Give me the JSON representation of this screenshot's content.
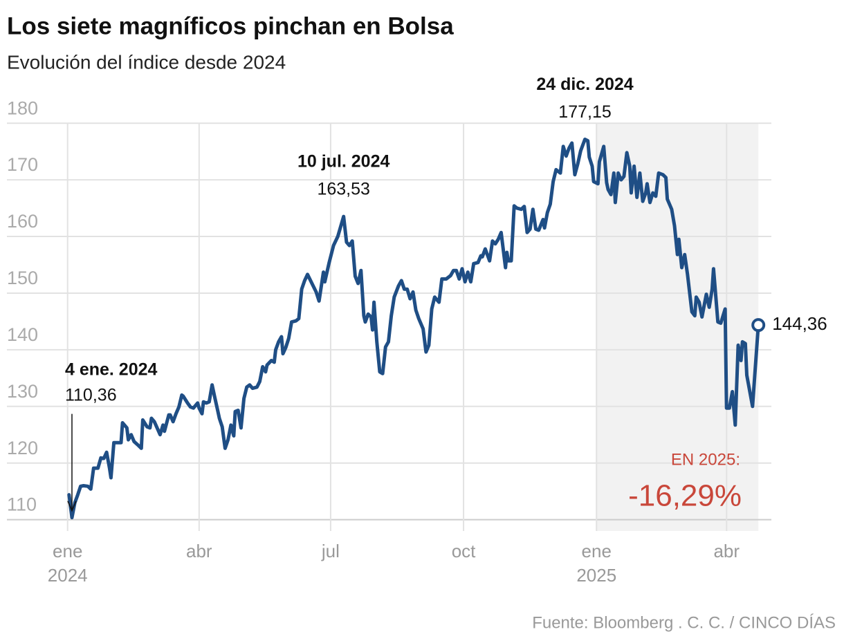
{
  "chart_data": {
    "type": "line",
    "title": "Los siete magníficos pinchan en Bolsa",
    "subtitle": "Evolución del índice desde 2024",
    "source": "Fuente: Bloomberg . C. C. / CINCO DÍAS",
    "xlim": [
      "2023-11-20",
      "2025-05-02"
    ],
    "xticks": [
      {
        "value": "2024-01-01",
        "label": "ene",
        "year": "2024"
      },
      {
        "value": "2024-04-01",
        "label": "abr"
      },
      {
        "value": "2024-07-01",
        "label": "jul"
      },
      {
        "value": "2024-10-01",
        "label": "oct"
      },
      {
        "value": "2025-01-01",
        "label": "ene",
        "year": "2025"
      },
      {
        "value": "2025-04-01",
        "label": "abr"
      }
    ],
    "ylim": [
      108,
      181
    ],
    "yticks": [
      110,
      120,
      130,
      140,
      150,
      160,
      170,
      180
    ],
    "grid": true,
    "highlight_from": "2025-01-01",
    "highlight_color": "#f2f2f2",
    "x": [
      "2024-01-02",
      "2024-01-04",
      "2024-01-06",
      "2024-01-08",
      "2024-01-10",
      "2024-01-12",
      "2024-01-15",
      "2024-01-17",
      "2024-01-19",
      "2024-01-22",
      "2024-01-24",
      "2024-01-26",
      "2024-01-28",
      "2024-01-30",
      "2024-01-31",
      "2024-02-02",
      "2024-02-05",
      "2024-02-07",
      "2024-02-08",
      "2024-02-11",
      "2024-02-12",
      "2024-02-14",
      "2024-02-16",
      "2024-02-19",
      "2024-02-21",
      "2024-02-22",
      "2024-02-25",
      "2024-02-27",
      "2024-02-28",
      "2024-03-01",
      "2024-03-04",
      "2024-03-05",
      "2024-03-07",
      "2024-03-08",
      "2024-03-11",
      "2024-03-12",
      "2024-03-14",
      "2024-03-16",
      "2024-03-18",
      "2024-03-20",
      "2024-03-21",
      "2024-03-24",
      "2024-03-26",
      "2024-03-28",
      "2024-03-31",
      "2024-04-01",
      "2024-04-03",
      "2024-04-04",
      "2024-04-06",
      "2024-04-08",
      "2024-04-10",
      "2024-04-12",
      "2024-04-14",
      "2024-04-15",
      "2024-04-17",
      "2024-04-19",
      "2024-04-21",
      "2024-04-23",
      "2024-04-25",
      "2024-04-26",
      "2024-04-28",
      "2024-04-30",
      "2024-05-02",
      "2024-05-04",
      "2024-05-06",
      "2024-05-08",
      "2024-05-11",
      "2024-05-13",
      "2024-05-15",
      "2024-05-17",
      "2024-05-18",
      "2024-05-21",
      "2024-05-23",
      "2024-05-24",
      "2024-05-26",
      "2024-05-28",
      "2024-05-29",
      "2024-05-31",
      "2024-06-02",
      "2024-06-04",
      "2024-06-07",
      "2024-06-09",
      "2024-06-11",
      "2024-06-13",
      "2024-06-15",
      "2024-06-21",
      "2024-06-23",
      "2024-06-26",
      "2024-06-27",
      "2024-06-30",
      "2024-07-03",
      "2024-07-06",
      "2024-07-10",
      "2024-07-12",
      "2024-07-14",
      "2024-07-16",
      "2024-07-18",
      "2024-07-20",
      "2024-07-22",
      "2024-07-24",
      "2024-07-25",
      "2024-07-27",
      "2024-07-29",
      "2024-07-30",
      "2024-07-31",
      "2024-08-02",
      "2024-08-04",
      "2024-08-06",
      "2024-08-08",
      "2024-08-10",
      "2024-08-12",
      "2024-08-14",
      "2024-08-17",
      "2024-08-19",
      "2024-08-21",
      "2024-08-23",
      "2024-08-25",
      "2024-08-27",
      "2024-08-29",
      "2024-08-31",
      "2024-09-03",
      "2024-09-05",
      "2024-09-07",
      "2024-09-09",
      "2024-09-11",
      "2024-09-14",
      "2024-09-16",
      "2024-09-19",
      "2024-09-22",
      "2024-09-24",
      "2024-09-26",
      "2024-09-28",
      "2024-09-30",
      "2024-10-02",
      "2024-10-04",
      "2024-10-06",
      "2024-10-08",
      "2024-10-11",
      "2024-10-13",
      "2024-10-14",
      "2024-10-16",
      "2024-10-19",
      "2024-10-21",
      "2024-10-23",
      "2024-10-25",
      "2024-10-27",
      "2024-10-30",
      "2024-10-31",
      "2024-11-01",
      "2024-11-03",
      "2024-11-05",
      "2024-11-07",
      "2024-11-10",
      "2024-11-12",
      "2024-11-14",
      "2024-11-16",
      "2024-11-18",
      "2024-11-20",
      "2024-11-22",
      "2024-11-25",
      "2024-11-26",
      "2024-11-28",
      "2024-11-30",
      "2024-12-02",
      "2024-12-04",
      "2024-12-07",
      "2024-12-09",
      "2024-12-11",
      "2024-12-13",
      "2024-12-15",
      "2024-12-17",
      "2024-12-19",
      "2024-12-21",
      "2024-12-24",
      "2024-12-26",
      "2024-12-27",
      "2024-12-29",
      "2024-12-30",
      "2025-01-02",
      "2025-01-03",
      "2025-01-06",
      "2025-01-08",
      "2025-01-09",
      "2025-01-11",
      "2025-01-13",
      "2025-01-14",
      "2025-01-16",
      "2025-01-18",
      "2025-01-20",
      "2025-01-22",
      "2025-01-24",
      "2025-01-25",
      "2025-01-27",
      "2025-01-29",
      "2025-01-31",
      "2025-02-02",
      "2025-02-04",
      "2025-02-05",
      "2025-02-07",
      "2025-02-09",
      "2025-02-11",
      "2025-02-13",
      "2025-02-16",
      "2025-02-18",
      "2025-02-19",
      "2025-02-22",
      "2025-02-24",
      "2025-02-26",
      "2025-02-27",
      "2025-03-01",
      "2025-03-03",
      "2025-03-05",
      "2025-03-08",
      "2025-03-10",
      "2025-03-11",
      "2025-03-13",
      "2025-03-15",
      "2025-03-18",
      "2025-03-20",
      "2025-03-22",
      "2025-03-23",
      "2025-03-26",
      "2025-03-28",
      "2025-03-31",
      "2025-04-01",
      "2025-04-03",
      "2025-04-05",
      "2025-04-07",
      "2025-04-09",
      "2025-04-11",
      "2025-04-12",
      "2025-04-14",
      "2025-04-15",
      "2025-04-19",
      "2025-04-23"
    ],
    "series": [
      {
        "color": "#1f4e85",
        "values": [
          114.4,
          110.36,
          113,
          114.4,
          115.9,
          116,
          115.9,
          115.4,
          119.1,
          119.1,
          120.9,
          120.8,
          121.9,
          119.1,
          117.4,
          123.6,
          123.6,
          123.6,
          127.1,
          126.2,
          124.1,
          125,
          123.8,
          123.1,
          122.6,
          127.6,
          126.4,
          126.2,
          127.9,
          127.3,
          125.6,
          125,
          126.7,
          125.6,
          128.5,
          128.5,
          127.3,
          128.7,
          129.9,
          132,
          131.8,
          130.6,
          129.9,
          129.7,
          130.6,
          129.7,
          128.7,
          130.8,
          130.6,
          130.8,
          133.8,
          131.4,
          129.1,
          127.9,
          126.4,
          122.6,
          124.1,
          126.7,
          124.8,
          129.1,
          129.3,
          126.2,
          131.4,
          133.4,
          133.8,
          133.2,
          133.4,
          134.4,
          137,
          136.1,
          137.3,
          138.1,
          137.8,
          140,
          141.4,
          142.3,
          139.3,
          140.4,
          142,
          144.9,
          145.1,
          145.5,
          150.7,
          152.2,
          153.3,
          150.2,
          148.6,
          153.7,
          152,
          155.4,
          158.4,
          160,
          163.53,
          159,
          158.4,
          159.2,
          153,
          151.7,
          154,
          146,
          144.9,
          146.3,
          145.8,
          143.5,
          148.4,
          141.4,
          136.1,
          135.8,
          140.5,
          141.4,
          146,
          149.3,
          151.3,
          152.2,
          150.7,
          150.7,
          149,
          150.2,
          147,
          145.5,
          143.7,
          139.6,
          140.8,
          147.2,
          149.3,
          148.4,
          152.5,
          152.5,
          153.1,
          154,
          154,
          152.5,
          154.3,
          152,
          153.7,
          152,
          155.2,
          155.4,
          156.6,
          156.4,
          157.8,
          155.7,
          159.2,
          158.7,
          159.5,
          160.7,
          154.5,
          157.2,
          155.7,
          155.7,
          165.4,
          165,
          164.8,
          165.3,
          160.7,
          161.3,
          164.8,
          161.3,
          161.1,
          163,
          161.5,
          164.2,
          165.7,
          169.7,
          171.8,
          171.2,
          175.9,
          174.2,
          175.6,
          176.5,
          170.9,
          172.8,
          175.1,
          177.15,
          176.9,
          174,
          172.4,
          169.7,
          169.3,
          173.2,
          175.9,
          169.5,
          168.3,
          167.4,
          171.2,
          166,
          171.2,
          170,
          170.6,
          174.8,
          172.4,
          167.7,
          172.4,
          166.9,
          171.2,
          166.2,
          167.7,
          169.3,
          166,
          167.7,
          167.1,
          171.2,
          170.9,
          170.4,
          166.6,
          164.8,
          161.9,
          156.8,
          159.5,
          154.5,
          156.8,
          153.3,
          146.7,
          146,
          149.3,
          148.4,
          145.8,
          149.8,
          147.5,
          150.7,
          154.3,
          144.9,
          144.7,
          147.2,
          129.7,
          129.7,
          132.6,
          126.7,
          140.8,
          138.1,
          141.4,
          141.1,
          135.5,
          130,
          144.36
        ]
      }
    ],
    "annotations": [
      {
        "kind": "arrow",
        "x": "2024-01-04",
        "y": 110.36,
        "label": "4 ene. 2024",
        "value_label": "110,36"
      },
      {
        "kind": "peak",
        "x": "2024-07-10",
        "y": 163.53,
        "label": "10 jul. 2024",
        "value_label": "163,53"
      },
      {
        "kind": "peak",
        "x": "2024-12-24",
        "y": 177.15,
        "label": "24 dic. 2024",
        "value_label": "177,15"
      },
      {
        "kind": "end",
        "x": "2025-04-23",
        "y": 144.36,
        "value_label": "144,36"
      }
    ],
    "ytd": {
      "label": "EN 2025:",
      "value": -16.29,
      "value_label": "-16,29%",
      "color": "#c9473a"
    }
  }
}
